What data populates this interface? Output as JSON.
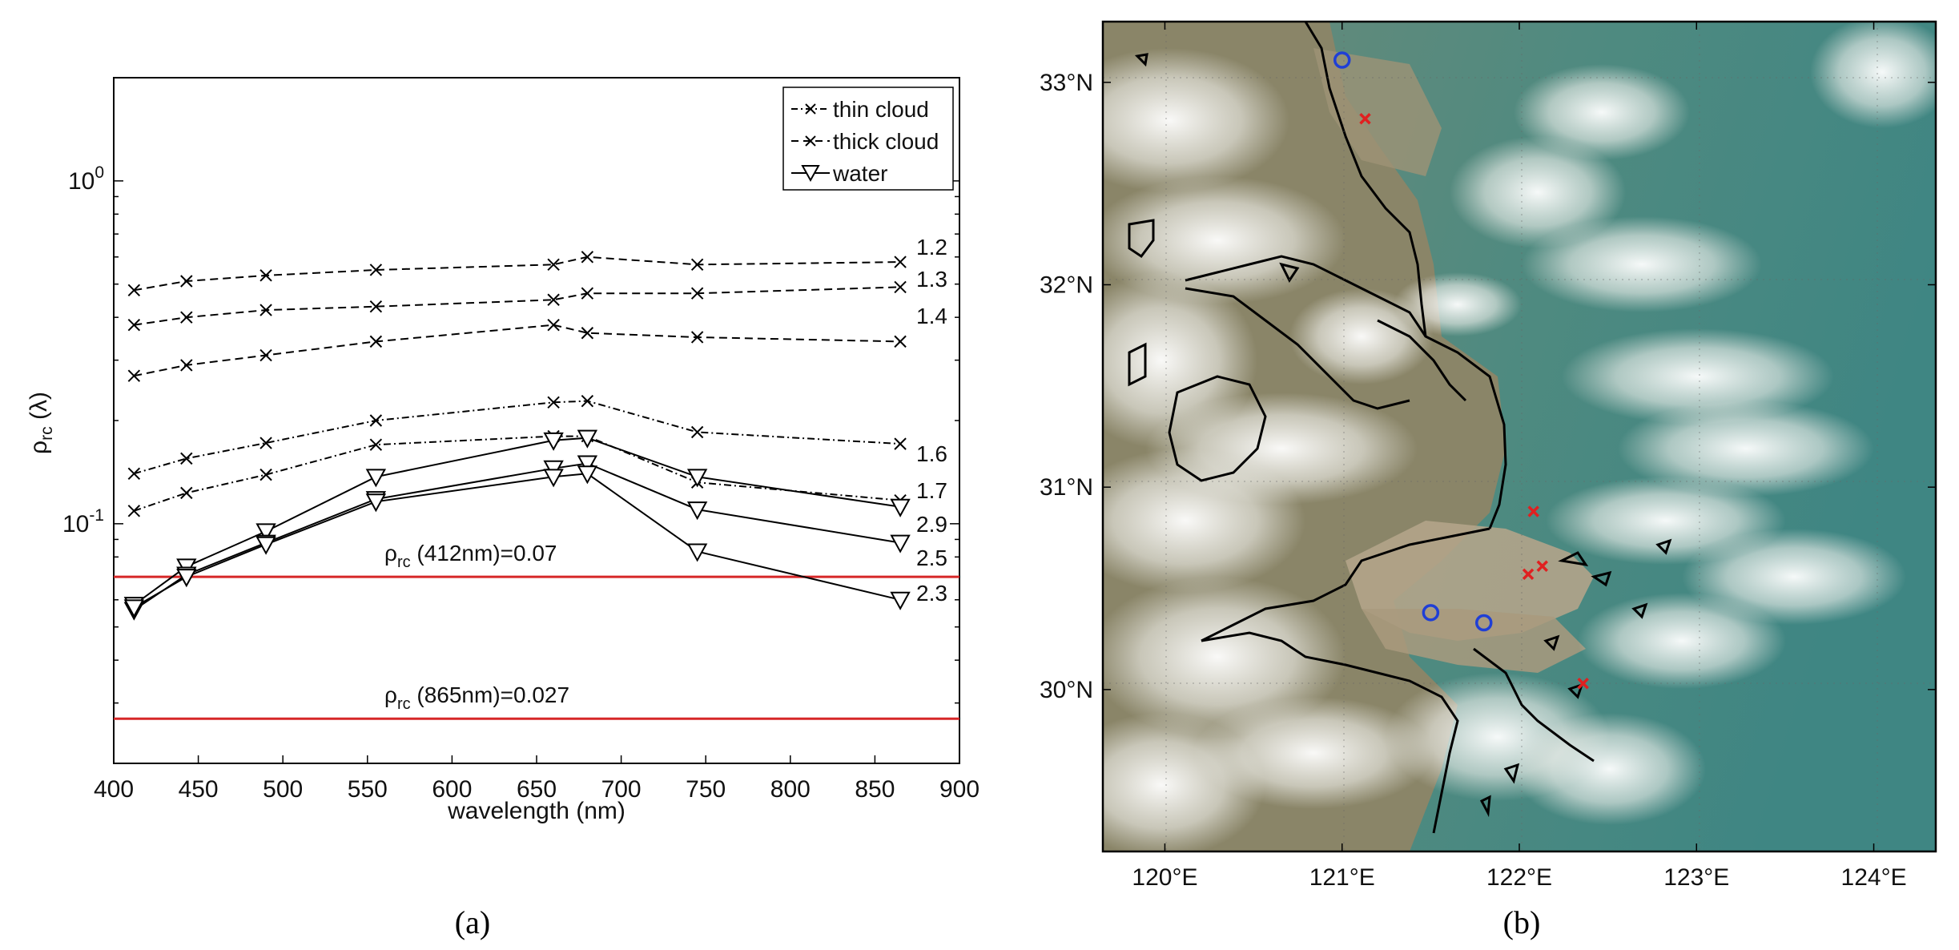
{
  "chart_data": [
    {
      "type": "line",
      "panel_label": "(a)",
      "xlabel": "wavelength (nm)",
      "ylabel": "ρ",
      "ylabel_sub": "rc",
      "ylabel_suffix": " (λ)",
      "xlim": [
        400,
        900
      ],
      "ylim": [
        0.02,
        2.0
      ],
      "yscale": "log",
      "xticks": [
        400,
        450,
        500,
        550,
        600,
        650,
        700,
        750,
        800,
        850,
        900
      ],
      "yticks": [
        {
          "value": 1.0,
          "base": "10",
          "exp": "0"
        },
        {
          "value": 0.1,
          "base": "10",
          "exp": "-1"
        }
      ],
      "x": [
        412,
        443,
        490,
        555,
        660,
        680,
        745,
        865
      ],
      "legend": {
        "placement": "top-right",
        "entries": [
          "thin cloud",
          "thick cloud",
          "water"
        ]
      },
      "series": [
        {
          "label": "1.2",
          "kind": "thick cloud",
          "values": [
            0.48,
            0.51,
            0.53,
            0.55,
            0.57,
            0.6,
            0.57,
            0.58
          ]
        },
        {
          "label": "1.3",
          "kind": "thick cloud",
          "values": [
            0.38,
            0.4,
            0.42,
            0.43,
            0.45,
            0.47,
            0.47,
            0.49
          ]
        },
        {
          "label": "1.4",
          "kind": "thick cloud",
          "values": [
            0.27,
            0.29,
            0.31,
            0.34,
            0.38,
            0.36,
            0.35,
            0.34
          ]
        },
        {
          "label": "1.6",
          "kind": "thin cloud",
          "values": [
            0.14,
            0.155,
            0.172,
            0.2,
            0.226,
            0.228,
            0.185,
            0.171
          ]
        },
        {
          "label": "1.7",
          "kind": "thin cloud",
          "values": [
            0.109,
            0.123,
            0.139,
            0.17,
            0.18,
            0.18,
            0.132,
            0.117
          ]
        },
        {
          "label": "2.9",
          "kind": "water",
          "values": [
            0.058,
            0.075,
            0.095,
            0.137,
            0.175,
            0.178,
            0.137,
            0.112
          ]
        },
        {
          "label": "2.5",
          "kind": "water",
          "values": [
            0.056,
            0.071,
            0.088,
            0.118,
            0.145,
            0.15,
            0.11,
            0.088
          ]
        },
        {
          "label": "2.3",
          "kind": "water",
          "values": [
            0.057,
            0.07,
            0.087,
            0.116,
            0.137,
            0.14,
            0.083,
            0.06
          ]
        }
      ],
      "reference_lines": [
        {
          "value": 0.07,
          "text_rho": "ρ",
          "text_sub": "rc",
          "text_rest": " (412nm)=0.07",
          "color": "#d62728"
        },
        {
          "value": 0.027,
          "text_rho": "ρ",
          "text_sub": "rc",
          "text_rest": " (865nm)=0.027",
          "color": "#d62728"
        }
      ]
    },
    {
      "type": "map",
      "panel_label": "(b)",
      "lon_range": [
        119.65,
        124.35
      ],
      "lat_range": [
        29.2,
        33.3
      ],
      "lon_ticks": [
        "120°E",
        "121°E",
        "122°E",
        "123°E",
        "124°E"
      ],
      "lat_ticks": [
        "30°N",
        "31°N",
        "32°N",
        "33°N"
      ],
      "markers": [
        {
          "shape": "circle",
          "color": "#1f3fd6",
          "lon": 121.0,
          "lat": 33.11
        },
        {
          "shape": "circle",
          "color": "#1f3fd6",
          "lon": 121.5,
          "lat": 30.38
        },
        {
          "shape": "circle",
          "color": "#1f3fd6",
          "lon": 121.8,
          "lat": 30.33
        },
        {
          "shape": "cross",
          "color": "#e02020",
          "lon": 121.13,
          "lat": 32.82
        },
        {
          "shape": "cross",
          "color": "#e02020",
          "lon": 122.08,
          "lat": 30.88
        },
        {
          "shape": "cross",
          "color": "#e02020",
          "lon": 122.13,
          "lat": 30.61
        },
        {
          "shape": "cross",
          "color": "#e02020",
          "lon": 122.05,
          "lat": 30.57
        },
        {
          "shape": "cross",
          "color": "#e02020",
          "lon": 122.36,
          "lat": 30.03
        }
      ]
    }
  ]
}
